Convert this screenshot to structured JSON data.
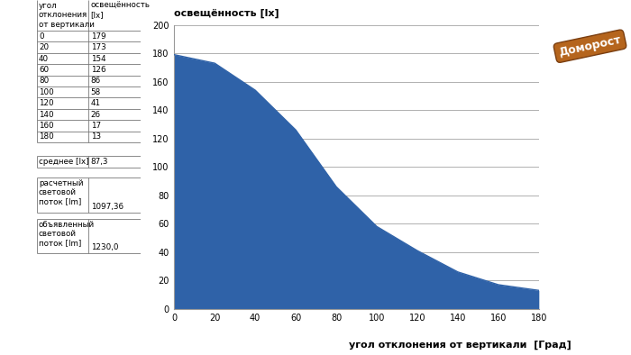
{
  "chart_data": {
    "type": "area",
    "title": "освещённость [lx]",
    "x_label": "угол отклонения от вертикали  [Град]",
    "x": [
      0,
      20,
      40,
      60,
      80,
      100,
      120,
      140,
      160,
      180
    ],
    "values": [
      179,
      173,
      154,
      126,
      86,
      58,
      41,
      26,
      17,
      13
    ],
    "color": "#2f62a8",
    "xlim": [
      0,
      180
    ],
    "xticks": [
      0,
      20,
      40,
      60,
      80,
      100,
      120,
      140,
      160,
      180
    ],
    "ylim": [
      0,
      200
    ],
    "yticks": [
      0,
      20,
      40,
      60,
      80,
      100,
      120,
      140,
      160,
      180,
      200
    ],
    "grid": true
  },
  "table": {
    "header": [
      "угол отклонения от вертикали",
      "освещённость [lx]"
    ],
    "summary": [
      {
        "label": "среднее [lx]",
        "value": "87,3"
      },
      {
        "label": "расчетный световой поток [lm]",
        "value": "1097,36"
      },
      {
        "label": "объявленный световой поток [lm]",
        "value": "1230,0"
      }
    ]
  },
  "logo": "Доморост"
}
